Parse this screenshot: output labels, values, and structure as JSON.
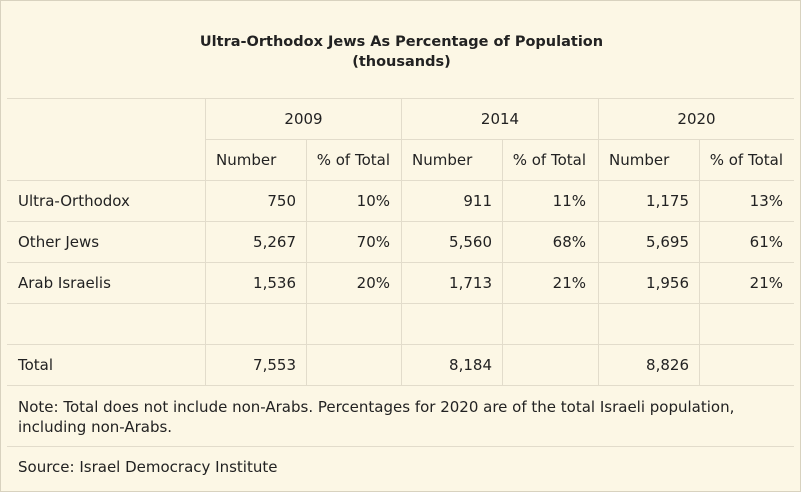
{
  "table": {
    "title_line1": "Ultra-Orthodox Jews As Percentage of Population",
    "title_line2": "(thousands)",
    "years": [
      "2009",
      "2014",
      "2020"
    ],
    "subheaders": [
      "Number",
      "% of Total"
    ],
    "rows": [
      {
        "label": "Ultra-Orthodox",
        "values": [
          "750",
          "10%",
          "911",
          "11%",
          "1,175",
          "13%"
        ]
      },
      {
        "label": "Other Jews",
        "values": [
          "5,267",
          "70%",
          "5,560",
          "68%",
          "5,695",
          "61%"
        ]
      },
      {
        "label": "Arab Israelis",
        "values": [
          "1,536",
          "20%",
          "1,713",
          "21%",
          "1,956",
          "21%"
        ]
      }
    ],
    "total": {
      "label": "Total",
      "values": [
        "7,553",
        "8,184",
        "8,826"
      ]
    },
    "note": "Note: Total does not include non-Arabs. Percentages for 2020 are of the total Israeli population, including non-Arabs.",
    "source": "Source: Israel Democracy Institute"
  }
}
